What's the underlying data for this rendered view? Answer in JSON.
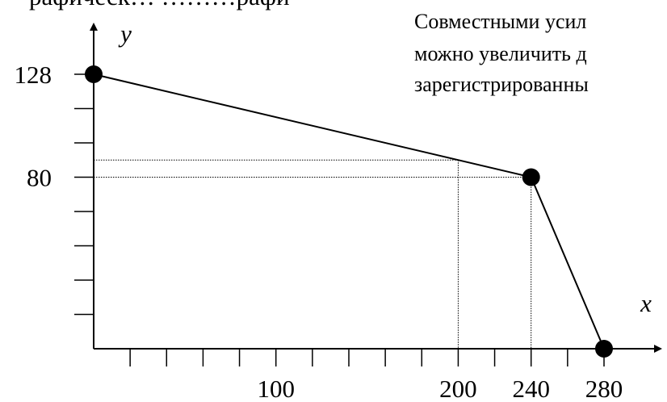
{
  "top_text_fragment": "рафическ…   ………рафи",
  "side_text": [
    "Совместными усил",
    "можно увеличить д",
    "зарегистрированны"
  ],
  "chart_data": {
    "type": "line",
    "xlabel": "x",
    "ylabel": "y",
    "xlim": [
      0,
      300
    ],
    "ylim": [
      0,
      140
    ],
    "x_ticks": [
      20,
      40,
      60,
      80,
      100,
      120,
      140,
      160,
      180,
      200,
      220,
      240,
      260,
      280
    ],
    "x_tick_labels": [
      {
        "x": 100,
        "label": "100"
      },
      {
        "x": 200,
        "label": "200"
      },
      {
        "x": 240,
        "label": "240"
      },
      {
        "x": 280,
        "label": "280"
      }
    ],
    "y_ticks": [
      16,
      32,
      48,
      64,
      80,
      96,
      112,
      128
    ],
    "y_tick_labels": [
      {
        "y": 80,
        "label": "80"
      },
      {
        "y": 128,
        "label": "128"
      }
    ],
    "series": [
      {
        "points": [
          {
            "x": 0,
            "y": 128
          },
          {
            "x": 240,
            "y": 80
          },
          {
            "x": 280,
            "y": 0
          }
        ],
        "marked_points": [
          {
            "x": 0,
            "y": 128
          },
          {
            "x": 240,
            "y": 80
          },
          {
            "x": 280,
            "y": 0
          }
        ]
      }
    ],
    "reference_lines": [
      {
        "x": 200,
        "y": 88,
        "style": "dotted"
      },
      {
        "x": 240,
        "y": 80,
        "style": "dotted"
      }
    ],
    "grid": false,
    "colors": {
      "line": "#000000",
      "marker": "#000000",
      "reference": "#000000"
    }
  }
}
